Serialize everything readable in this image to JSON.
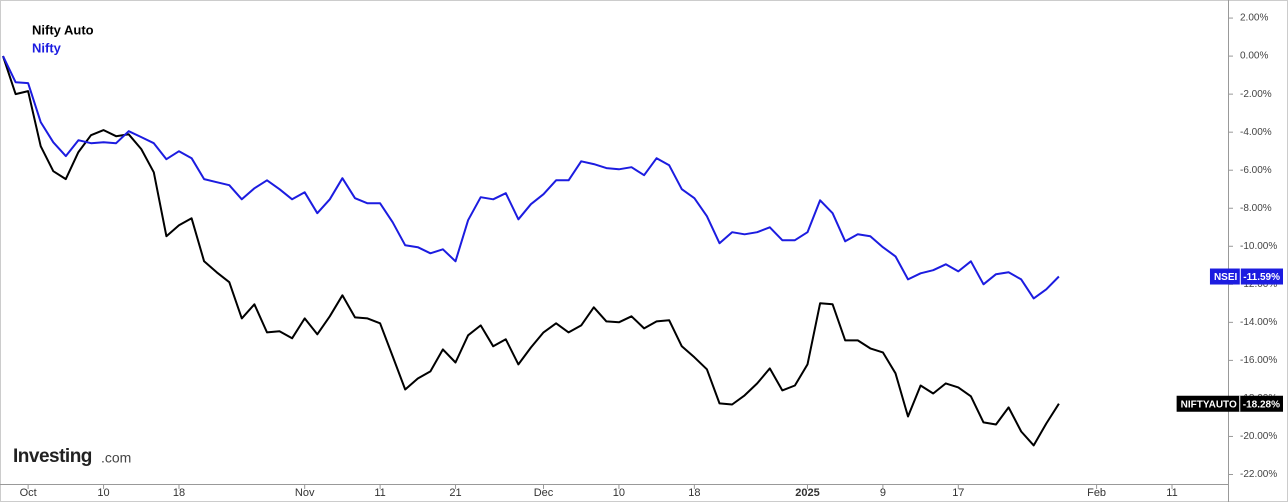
{
  "chart_data": {
    "type": "line",
    "categories": [
      null,
      null,
      "Oct",
      null,
      null,
      null,
      null,
      null,
      "10",
      null,
      null,
      null,
      null,
      null,
      "18",
      null,
      null,
      null,
      null,
      null,
      null,
      null,
      null,
      null,
      "Nov",
      null,
      null,
      null,
      null,
      null,
      "11",
      null,
      null,
      null,
      null,
      null,
      "21",
      null,
      null,
      null,
      null,
      null,
      null,
      "Dec",
      null,
      null,
      null,
      null,
      null,
      "10",
      null,
      null,
      null,
      null,
      null,
      "18",
      null,
      null,
      null,
      null,
      null,
      null,
      null,
      null,
      "2025",
      null,
      null,
      null,
      null,
      null,
      "9",
      null,
      null,
      null,
      null,
      null,
      "17",
      null,
      null,
      null,
      null,
      null,
      null,
      null,
      null,
      null,
      null,
      "Feb",
      null,
      null,
      null,
      null,
      null,
      "11"
    ],
    "series": [
      {
        "name": "Nifty Auto",
        "color": "#000000",
        "end_label": {
          "ticker": "NIFTYAUTO",
          "text": "-18.28%"
        },
        "values": [
          0,
          -2.0,
          -1.84,
          -4.74,
          -6.05,
          -6.47,
          -5.05,
          -4.16,
          -3.89,
          -4.21,
          -4.11,
          -4.89,
          -6.11,
          -9.47,
          -8.89,
          -8.53,
          -10.79,
          -11.37,
          -11.89,
          -13.79,
          -13.05,
          -14.53,
          -14.47,
          -14.84,
          -13.79,
          -14.63,
          -13.68,
          -12.58,
          -13.74,
          -13.79,
          -14.05,
          -15.79,
          -17.53,
          -16.95,
          -16.58,
          -15.42,
          -16.11,
          -14.68,
          -14.16,
          -15.26,
          -14.89,
          -16.21,
          -15.32,
          -14.53,
          -14.05,
          -14.53,
          -14.16,
          -13.21,
          -13.95,
          -14.0,
          -13.68,
          -14.32,
          -13.95,
          -13.89,
          -15.26,
          -15.84,
          -16.47,
          -18.26,
          -18.32,
          -17.84,
          -17.21,
          -16.42,
          -17.58,
          -17.32,
          -16.21,
          -13.0,
          -13.05,
          -14.95,
          -14.95,
          -15.37,
          -15.58,
          -16.68,
          -18.95,
          -17.32,
          -17.74,
          -17.21,
          -17.42,
          -17.89,
          -19.26,
          -19.37,
          -18.47,
          -19.74,
          -20.47,
          -19.32,
          -18.28,
          null,
          null,
          null,
          null,
          null,
          null,
          null,
          null,
          null
        ]
      },
      {
        "name": "Nifty",
        "color": "#1c1ce0",
        "end_label": {
          "ticker": "NSEI",
          "text": "-11.59%"
        },
        "values": [
          0,
          -1.37,
          -1.42,
          -3.47,
          -4.53,
          -5.26,
          -4.42,
          -4.58,
          -4.53,
          -4.58,
          -3.95,
          -4.26,
          -4.58,
          -5.42,
          -5.0,
          -5.37,
          -6.47,
          -6.63,
          -6.79,
          -7.53,
          -6.95,
          -6.53,
          -7.0,
          -7.53,
          -7.16,
          -8.26,
          -7.53,
          -6.42,
          -7.47,
          -7.74,
          -7.74,
          -8.74,
          -9.95,
          -10.05,
          -10.37,
          -10.16,
          -10.79,
          -8.63,
          -7.42,
          -7.53,
          -7.21,
          -8.58,
          -7.79,
          -7.26,
          -6.53,
          -6.53,
          -5.53,
          -5.68,
          -5.89,
          -5.95,
          -5.84,
          -6.26,
          -5.37,
          -5.74,
          -7.0,
          -7.47,
          -8.42,
          -9.84,
          -9.26,
          -9.37,
          -9.26,
          -9.0,
          -9.68,
          -9.68,
          -9.26,
          -7.58,
          -8.26,
          -9.74,
          -9.37,
          -9.47,
          -10.05,
          -10.53,
          -11.74,
          -11.42,
          -11.26,
          -10.95,
          -11.32,
          -10.79,
          -12.0,
          -11.47,
          -11.37,
          -11.74,
          -12.74,
          -12.26,
          -11.59,
          null,
          null,
          null,
          null,
          null,
          null,
          null,
          null,
          null
        ]
      }
    ],
    "ylim": [
      -22.5,
      2.95
    ],
    "yticks": [
      {
        "value": 2,
        "label": "2.00%"
      },
      {
        "value": 0,
        "label": "0.00%"
      },
      {
        "value": -2,
        "label": "-2.00%"
      },
      {
        "value": -4,
        "label": "-4.00%"
      },
      {
        "value": -6,
        "label": "-6.00%"
      },
      {
        "value": -8,
        "label": "-8.00%"
      },
      {
        "value": -10,
        "label": "-10.00%"
      },
      {
        "value": -12,
        "label": "-12.00%"
      },
      {
        "value": -14,
        "label": "-14.00%"
      },
      {
        "value": -16,
        "label": "-16.00%"
      },
      {
        "value": -18,
        "label": "-18.00%"
      },
      {
        "value": -20,
        "label": "-20.00%"
      },
      {
        "value": -22,
        "label": "-22.00%"
      }
    ],
    "y_axis_side": "right",
    "grid": false,
    "legend_position": "top-left",
    "watermark": {
      "brand": "Investing",
      "suffix": ".com"
    }
  }
}
